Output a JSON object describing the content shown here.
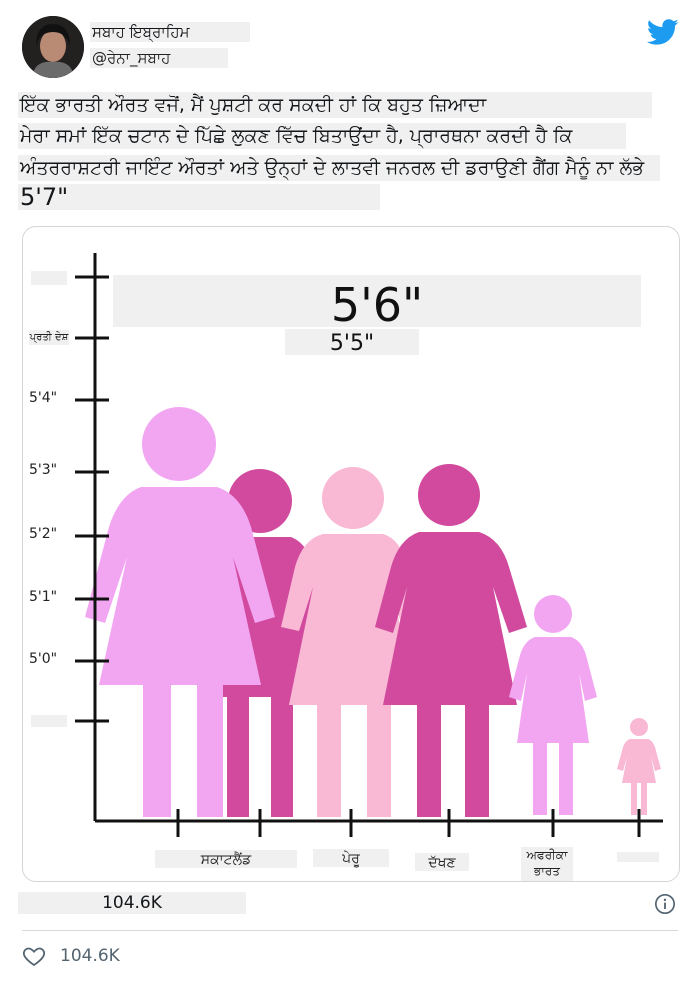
{
  "tweet": {
    "display_name": "ਸਬਾਹ ਇਬ੍ਰਾਹਿਮ",
    "handle": "@ਰੇਨਾ_ਸਬਾਹ",
    "lines": [
      "ਇੱਕ ਭਾਰਤੀ ਔਰਤ ਵਜੋਂ, ਮੈਂ ਪੁਸ਼ਟੀ ਕਰ ਸਕਦੀ ਹਾਂ ਕਿ ਬਹੁਤ ਜ਼ਿਆਦਾ",
      "ਮੇਰਾ ਸਮਾਂ ਇੱਕ ਚਟਾਨ ਦੇ ਪਿੱਛੇ ਲੁਕਣ ਵਿੱਚ ਬਿਤਾਉਂਦਾ ਹੈ, ਪ੍ਰਾਰਥਨਾ ਕਰਦੀ ਹੈ ਕਿ",
      "ਅੰਤਰਰਾਸ਼ਟਰੀ ਜਾਇੰਟ ਔਰਤਾਂ ਅਤੇ ਉਨ੍ਹਾਂ ਦੇ ਲਾਤਵੀ ਜਨਰਲ ਦੀ ਡਰਾਉਣੀ ਗੈਂਗ ਮੈਨੂੰ ਨਾ ਲੱਭੇ",
      "5'7\""
    ],
    "likes_summary": "104.6K",
    "likes_count": "104.6K"
  },
  "icons": {
    "brand": "twitter-bird-icon",
    "info": "info-icon",
    "like": "heart-icon"
  },
  "colors": {
    "twitter_blue": "#1d9bf0",
    "light_pink": "#f2a6f2",
    "magenta": "#d14a9e",
    "pale_pink": "#f9b8d4"
  },
  "chart": {
    "y_ticks": [
      "",
      "ਪ੍ਰਤੀ ਦੇਸ਼",
      "5'4\"",
      "5'3\"",
      "5'2\"",
      "5'1\"",
      "5'0\"",
      ""
    ],
    "big_label": "5'6\"",
    "sub_label": "5'5\"",
    "x_labels": [
      "ਸਕਾਟਲੈਂਡ",
      "ਪੇਰੂ",
      "ਦੱਖਣ",
      "ਅਫਰੀਕਾ\nਭਾਰਤ",
      ""
    ]
  }
}
